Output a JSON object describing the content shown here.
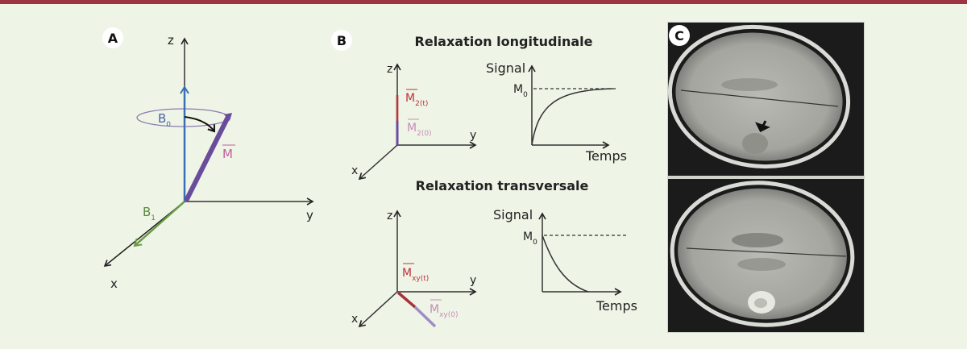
{
  "panels": {
    "a": {
      "label": "A",
      "axis_z": "z",
      "axis_y": "y",
      "axis_x": "x",
      "b0": "B",
      "b0_sub": "0",
      "b1": "B",
      "b1_sub": "1",
      "m": "M"
    },
    "b": {
      "label": "B",
      "longitudinal": {
        "title": "Relaxation longitudinale",
        "axis_z": "z",
        "axis_y": "y",
        "axis_x": "x",
        "m_t": "M",
        "m_t_sub": "2(t)",
        "m_0": "M",
        "m_0_sub": "2(0)",
        "signal": "Signal",
        "m0": "M",
        "m0_sub": "0",
        "time": "Temps"
      },
      "transverse": {
        "title": "Relaxation transversale",
        "axis_z": "z",
        "axis_y": "y",
        "axis_x": "x",
        "m_t": "M",
        "m_t_sub": "xy(t)",
        "m_0": "M",
        "m_0_sub": "xy(0)",
        "signal": "Signal",
        "m0": "M",
        "m0_sub": "0",
        "time": "Temps"
      }
    },
    "c": {
      "label": "C"
    }
  },
  "colors": {
    "background": "#eef5e7",
    "top_bar": "#9e3442",
    "b0_blue": "#3a6fb5",
    "m_purple": "#6a4c9c",
    "m_label_pink": "#c0609a",
    "b1_green": "#6a9a46",
    "relax_red": "#c0313a",
    "relax_pink": "#c98bb8"
  }
}
